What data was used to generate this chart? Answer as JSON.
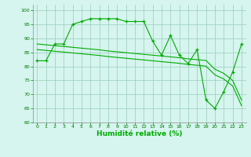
{
  "line1_x": [
    0,
    1,
    2,
    3,
    4,
    5,
    6,
    7,
    8,
    9,
    10,
    11,
    12,
    13,
    14,
    15,
    16,
    17,
    18,
    19,
    20,
    21,
    22,
    23
  ],
  "line1_y": [
    82,
    82,
    88,
    88,
    95,
    96,
    97,
    97,
    97,
    97,
    96,
    96,
    96,
    89,
    84,
    91,
    84,
    81,
    86,
    68,
    65,
    71,
    78,
    88
  ],
  "line2_x": [
    0,
    1,
    2,
    3,
    4,
    5,
    6,
    7,
    8,
    9,
    10,
    11,
    12,
    13,
    14,
    15,
    16,
    17,
    18,
    19,
    20,
    21,
    22,
    23
  ],
  "line2_y": [
    88,
    87.7,
    87.4,
    87.1,
    86.8,
    86.5,
    86.2,
    85.9,
    85.5,
    85.2,
    84.9,
    84.6,
    84.3,
    84.0,
    83.7,
    83.4,
    83.1,
    82.7,
    82.4,
    82.1,
    79.0,
    77.5,
    75.0,
    68
  ],
  "line3_x": [
    0,
    1,
    2,
    3,
    4,
    5,
    6,
    7,
    8,
    9,
    10,
    11,
    12,
    13,
    14,
    15,
    16,
    17,
    18,
    19,
    20,
    21,
    22,
    23
  ],
  "line3_y": [
    86,
    85.7,
    85.4,
    85.1,
    84.8,
    84.5,
    84.2,
    83.9,
    83.5,
    83.2,
    82.9,
    82.6,
    82.3,
    82.0,
    81.7,
    81.4,
    81.1,
    80.7,
    80.4,
    80.1,
    77.0,
    75.5,
    73.0,
    66
  ],
  "line_color": "#00aa00",
  "bg_color": "#d5f5ee",
  "grid_color": "#99ccbb",
  "xlabel": "Humidité relative (%)",
  "ylim": [
    60,
    102
  ],
  "xlim": [
    -0.5,
    23.5
  ],
  "yticks": [
    60,
    65,
    70,
    75,
    80,
    85,
    90,
    95,
    100
  ],
  "xticks": [
    0,
    1,
    2,
    3,
    4,
    5,
    6,
    7,
    8,
    9,
    10,
    11,
    12,
    13,
    14,
    15,
    16,
    17,
    18,
    19,
    20,
    21,
    22,
    23
  ]
}
